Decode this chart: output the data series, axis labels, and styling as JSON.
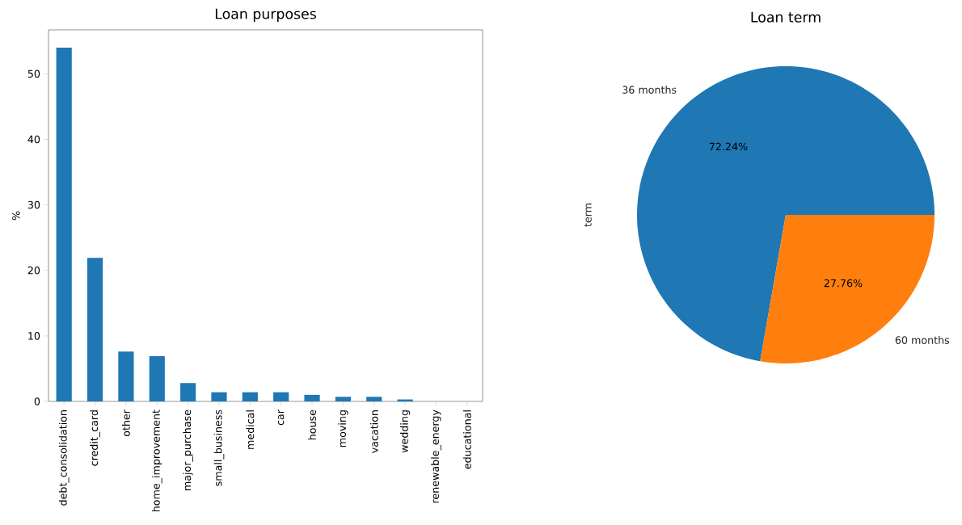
{
  "chart_data": [
    {
      "type": "bar",
      "title": "Loan purposes",
      "ylabel": "%",
      "categories": [
        "debt_consolidation",
        "credit_card",
        "other",
        "home_improvement",
        "major_purchase",
        "small_business",
        "medical",
        "car",
        "house",
        "moving",
        "vacation",
        "wedding",
        "renewable_energy",
        "educational"
      ],
      "values": [
        54.0,
        21.9,
        7.6,
        6.9,
        2.8,
        1.4,
        1.4,
        1.4,
        1.0,
        0.7,
        0.7,
        0.3,
        0,
        0
      ],
      "color": "#1f77b4",
      "ylim": [
        0,
        56.7
      ],
      "yticks": [
        0,
        10,
        20,
        30,
        40,
        50
      ],
      "grid": false
    },
    {
      "type": "pie",
      "title": "Loan term",
      "ylabel": "term",
      "categories": [
        "36 months",
        "60 months"
      ],
      "values": [
        72.24,
        27.76
      ],
      "colors": [
        "#1f77b4",
        "#ff7f0e"
      ],
      "value_labels": [
        "72.24%",
        "27.76%"
      ]
    }
  ]
}
